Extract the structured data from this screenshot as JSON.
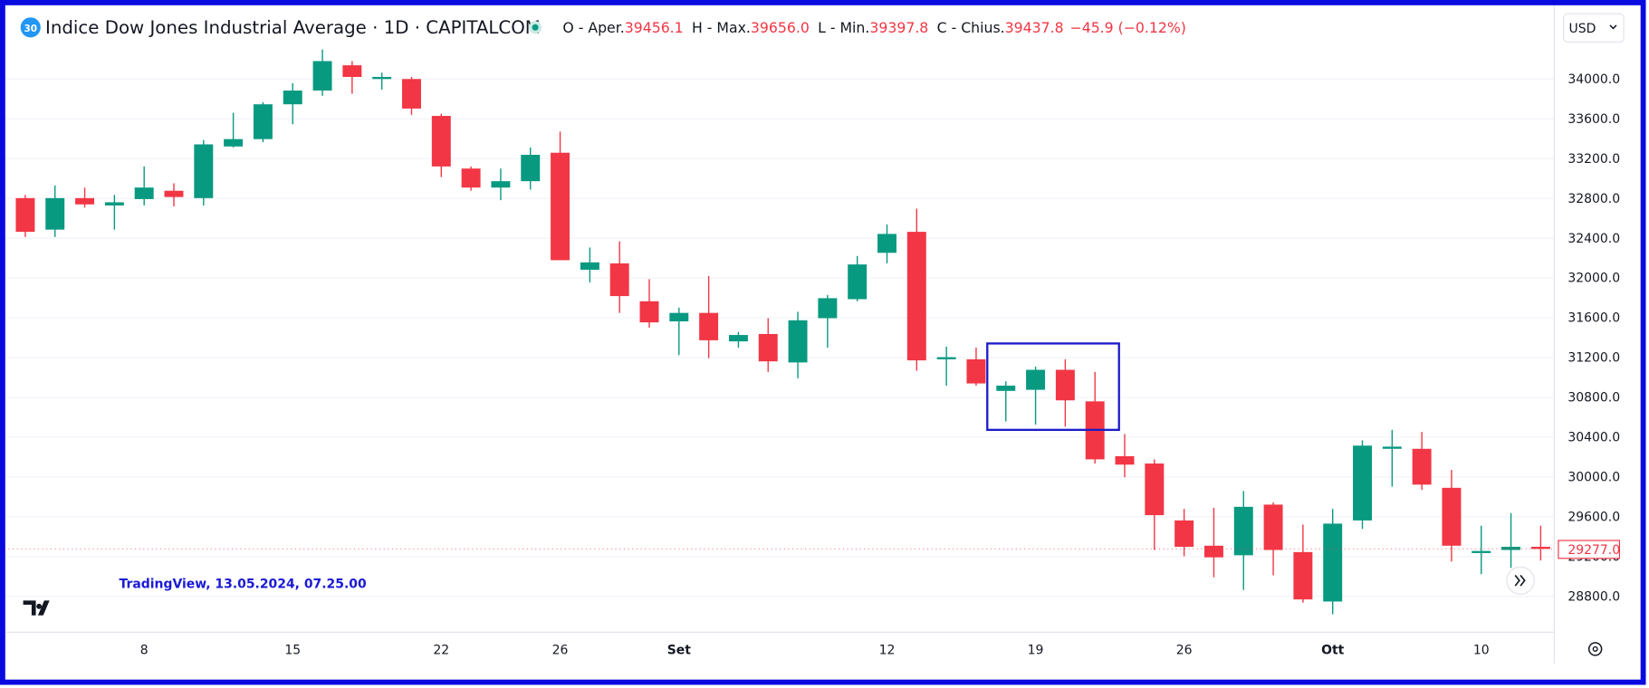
{
  "header": {
    "badge": "30",
    "title": "Indice Dow Jones Industrial Average · 1D · CAPITALCOM",
    "ohlc": [
      {
        "label": "O - Aper.",
        "value": "39456.1"
      },
      {
        "label": "H - Max.",
        "value": "39656.0"
      },
      {
        "label": "L - Min.",
        "value": "39397.8"
      },
      {
        "label": "C - Chius.",
        "value": "39437.8"
      }
    ],
    "change": "−45.9 (−0.12%)",
    "currency": "USD"
  },
  "watermark": "TradingView, 13.05.2024, 07.25.00",
  "chart_data": {
    "type": "candlestick",
    "categories": [
      null,
      null,
      null,
      null,
      "8",
      null,
      null,
      null,
      null,
      "15",
      null,
      null,
      null,
      null,
      "22",
      null,
      null,
      null,
      "26",
      null,
      null,
      null,
      "Set",
      null,
      null,
      null,
      null,
      null,
      null,
      "12",
      null,
      null,
      null,
      null,
      "19",
      null,
      null,
      null,
      null,
      "26",
      null,
      null,
      null,
      null,
      "Ott",
      null,
      null,
      null,
      null,
      "10",
      null,
      null
    ],
    "open": [
      32803,
      32486,
      32803,
      32729,
      32793,
      32877,
      32803,
      33322,
      33396,
      33746,
      33884,
      34138,
      34000,
      34000,
      33629,
      33100,
      32909,
      32973,
      33259,
      32083,
      32147,
      31766,
      31564,
      31649,
      31363,
      31437,
      31151,
      31596,
      31787,
      32253,
      32464,
      31183,
      31183,
      30865,
      30876,
      31077,
      30760,
      30209,
      30135,
      29563,
      29309,
      29213,
      29722,
      29245,
      28748,
      29563,
      30283,
      30283,
      29891,
      29235,
      29266,
      29298
    ],
    "high": [
      32835,
      32930,
      32909,
      32835,
      33121,
      32952,
      33386,
      33661,
      33767,
      33958,
      34297,
      34180,
      34064,
      34021,
      33651,
      33121,
      33100,
      33312,
      33471,
      32306,
      32369,
      31988,
      31702,
      32020,
      31458,
      31596,
      31660,
      31829,
      32221,
      32539,
      32697,
      31310,
      31300,
      30961,
      31109,
      31183,
      31056,
      30431,
      30177,
      29679,
      29690,
      29859,
      29743,
      29521,
      29679,
      30368,
      30474,
      30453,
      30071,
      29510,
      29637,
      29510
    ],
    "low": [
      32412,
      32412,
      32708,
      32486,
      32729,
      32719,
      32729,
      33312,
      33365,
      33545,
      33831,
      33852,
      33894,
      33640,
      33015,
      32877,
      32782,
      32888,
      32179,
      31956,
      31649,
      31501,
      31225,
      31194,
      31300,
      31056,
      30992,
      31300,
      31766,
      32147,
      31067,
      30918,
      30918,
      30558,
      30526,
      30505,
      30135,
      29997,
      29266,
      29203,
      28991,
      28864,
      29012,
      28737,
      28620,
      29478,
      29902,
      29870,
      29150,
      29023,
      29086,
      29160
    ],
    "close": [
      32464,
      32803,
      32740,
      32761,
      32909,
      32814,
      33343,
      33396,
      33746,
      33884,
      34180,
      34021,
      34021,
      33703,
      33121,
      32909,
      32973,
      33238,
      32179,
      32157,
      31818,
      31554,
      31649,
      31374,
      31427,
      31162,
      31575,
      31797,
      32136,
      32443,
      31172,
      31204,
      30940,
      30918,
      31077,
      30770,
      30177,
      30124,
      29616,
      29298,
      29192,
      29700,
      29266,
      28769,
      29531,
      30315,
      30305,
      29923,
      29309,
      29256,
      29298,
      29277
    ],
    "up_color": "#089981",
    "down_color": "#f23645",
    "ylim": [
      28440,
      34413
    ],
    "yticks": [
      {
        "value": 28800,
        "label": "28800.0"
      },
      {
        "value": 29200,
        "label": "29200.0"
      },
      {
        "value": 29600,
        "label": "29600.0"
      },
      {
        "value": 30000,
        "label": "30000.0"
      },
      {
        "value": 30400,
        "label": "30400.0"
      },
      {
        "value": 30800,
        "label": "30800.0"
      },
      {
        "value": 31200,
        "label": "31200.0"
      },
      {
        "value": 31600,
        "label": "31600.0"
      },
      {
        "value": 32000,
        "label": "32000.0"
      },
      {
        "value": 32400,
        "label": "32400.0"
      },
      {
        "value": 32800,
        "label": "32800.0"
      },
      {
        "value": 33200,
        "label": "33200.0"
      },
      {
        "value": 33600,
        "label": "33600.0"
      },
      {
        "value": 34000,
        "label": "34000.0"
      }
    ],
    "grid": true,
    "last_price": {
      "value": 29277,
      "label": "29277.0"
    }
  }
}
